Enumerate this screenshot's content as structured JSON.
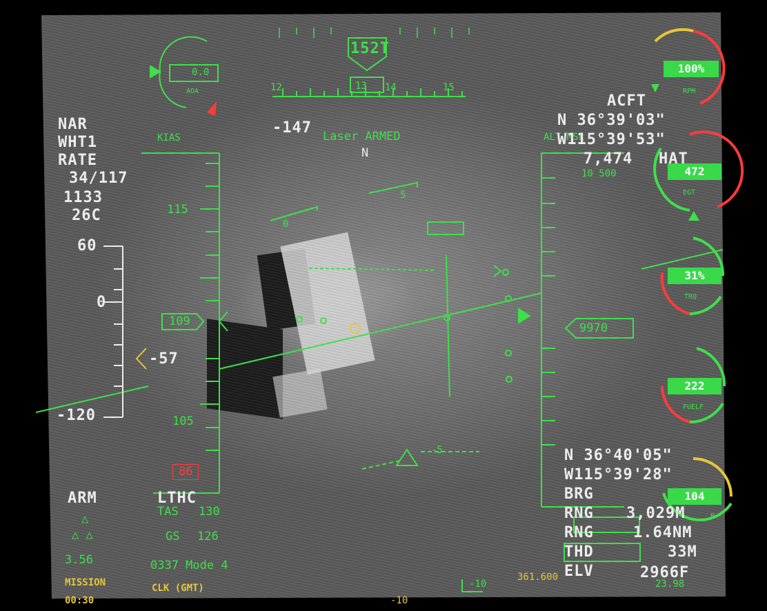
{
  "heading": {
    "value": "152T",
    "tape": [
      "12",
      "13",
      "14",
      "15"
    ]
  },
  "aoa": {
    "label": "AOA",
    "value": "0.0"
  },
  "left_status": {
    "line1": "NAR",
    "line2": "WHT1",
    "line3": "RATE",
    "line4": "34/117",
    "line5": "1133",
    "line6": "26C"
  },
  "speed": {
    "label": "KIAS",
    "current": "109",
    "tick_upper": "115",
    "tick_lower": "105",
    "red_box": "86",
    "tas_label": "TAS",
    "tas_value": "130",
    "gs_label": "GS",
    "gs_value": "126"
  },
  "pitch_ladder": {
    "top": "60",
    "mid": "0",
    "bottom": "-120",
    "caret_value": "-57"
  },
  "steering_value": "-147",
  "laser_status": "Laser ARMED",
  "north_marker": "N",
  "pitch_marks": [
    "5",
    "0",
    "-5"
  ],
  "altitude": {
    "label": "ALT MSL",
    "current": "9970",
    "tick": "10 500"
  },
  "acft": {
    "label": "ACFT",
    "lat": "N 36°39'03\"",
    "lon": "W115°39'53\"",
    "hat_value": "7,474",
    "hat_label": "HAT"
  },
  "target": {
    "lat": "N 36°40'05\"",
    "lon": "W115°39'28\"",
    "brg": "BRG",
    "rng1_label": "RNG",
    "rng1_value": "3,029M",
    "rng2_label": "RNG",
    "rng2_value": "1.64NM",
    "thd_label": "THD",
    "thd_value": "33M",
    "elv_label": "ELV",
    "elv_value": "2966F",
    "bottom_value": "23.98"
  },
  "gauges": {
    "rpm": {
      "label": "RPM",
      "value": "100%"
    },
    "egt": {
      "label": "EGT",
      "value": "472"
    },
    "trq": {
      "label": "TRQ",
      "value": "31%"
    },
    "fuel": {
      "label": "FUELF",
      "value": "222"
    },
    "p": {
      "label": "P",
      "value": "104"
    }
  },
  "bottom_left": {
    "arm": "ARM",
    "lthc": "LTHC",
    "v356": "3.56",
    "mode": "0337 Mode 4",
    "mission_label": "MISSION",
    "mission_time": "00:30",
    "clk_label": "CLK (GMT)"
  },
  "bottom_center": {
    "roll": "-10",
    "freq": "361.600",
    "roll2": "-10"
  },
  "colors": {
    "hud_green": "#3ee04a",
    "warn_red": "#ff3b3b",
    "caution_yellow": "#e6c63a",
    "text_white": "#ececec"
  }
}
